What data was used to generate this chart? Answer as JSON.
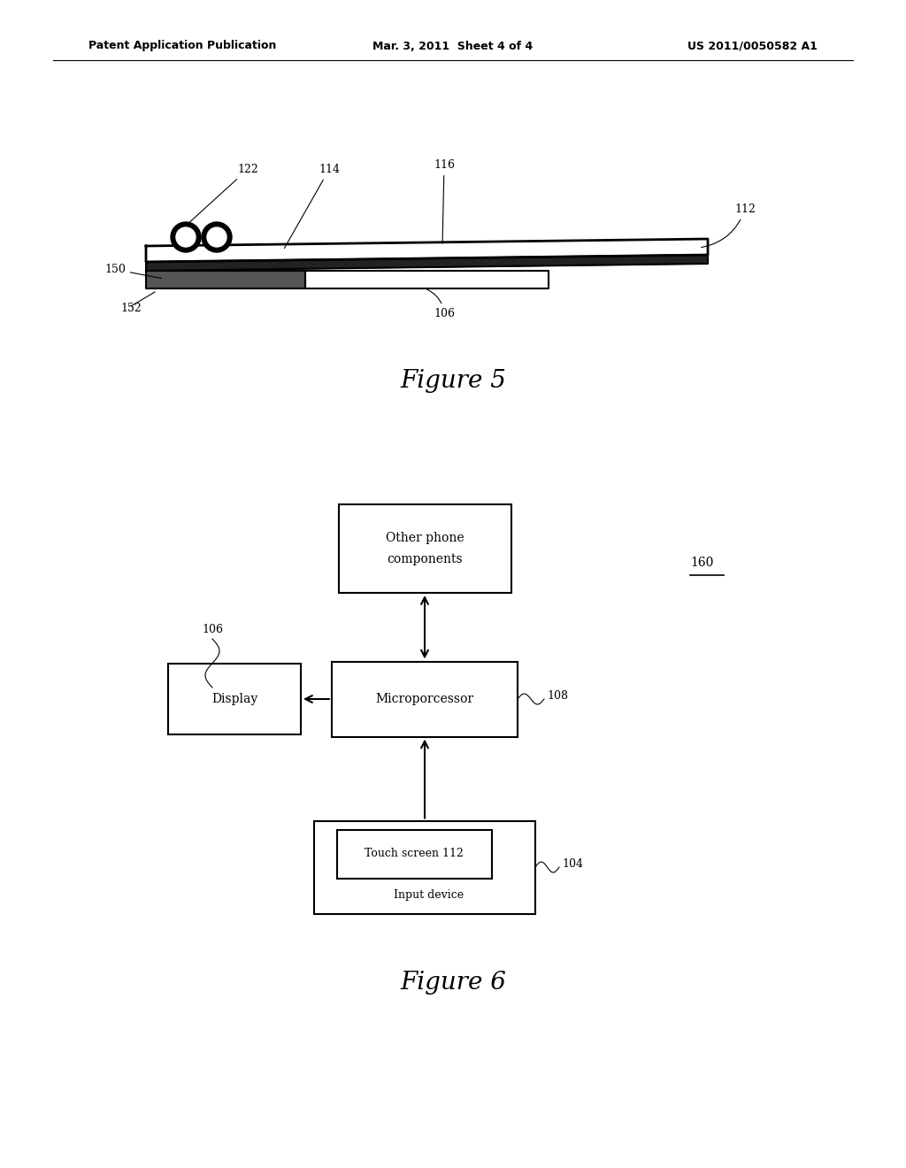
{
  "bg_color": "#ffffff",
  "header_left": "Patent Application Publication",
  "header_mid": "Mar. 3, 2011  Sheet 4 of 4",
  "header_right": "US 2011/0050582 A1",
  "fig5_caption": "Figure 5",
  "fig6_caption": "Figure 6"
}
